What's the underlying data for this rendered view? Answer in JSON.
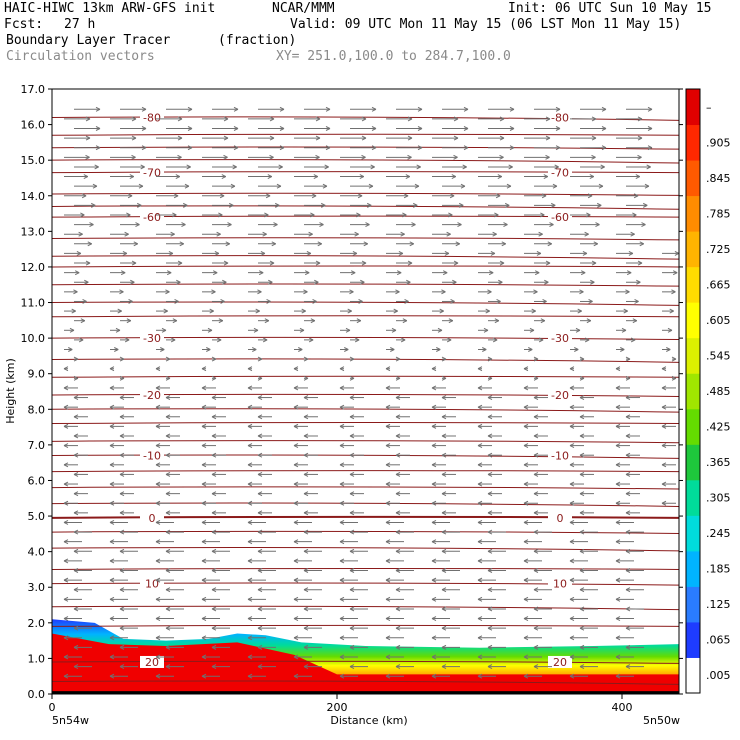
{
  "header": {
    "model": "HAIC-HIWC 13km ARW-GFS init",
    "org": "NCAR/MMM",
    "init": "Init: 06 UTC Sun 10 May 15",
    "fcst_label": "Fcst:",
    "fcst_value": "27 h",
    "valid": "Valid: 09 UTC Mon 11 May 15 (06 LST Mon 11 May 15)",
    "field": "Boundary Layer Tracer",
    "units": "(fraction)",
    "vectors": "Circulation vectors",
    "xy": "XY= 251.0,100.0 to 284.7,100.0"
  },
  "chart_data": {
    "type": "heatmap",
    "xlabel": "Distance (km)",
    "ylabel": "Height (km)",
    "xlim": [
      0,
      440
    ],
    "ylim": [
      0,
      17
    ],
    "x_ticks": [
      "0",
      "200",
      "400"
    ],
    "x_end_labels": [
      "5n54w",
      "5n50w"
    ],
    "y_ticks": [
      "0.0",
      "1.0",
      "2.0",
      "3.0",
      "4.0",
      "5.0",
      "6.0",
      "7.0",
      "8.0",
      "9.0",
      "10.0",
      "11.0",
      "12.0",
      "13.0",
      "14.0",
      "15.0",
      "16.0",
      "17.0"
    ],
    "colorbar_labels": [
      ".005",
      ".065",
      ".125",
      ".185",
      ".245",
      ".305",
      ".365",
      ".425",
      ".485",
      ".545",
      ".605",
      ".665",
      ".725",
      ".785",
      ".845",
      ".905",
      "–"
    ],
    "colorbar_colors": [
      "#ffffff",
      "#1e3cff",
      "#2a7cff",
      "#00b4ff",
      "#00dcdc",
      "#00dc9a",
      "#1ec83c",
      "#64dc00",
      "#a0e600",
      "#dcf000",
      "#ffff00",
      "#ffdc00",
      "#ffb400",
      "#ff8c00",
      "#ff5a00",
      "#ff2800",
      "#e00000"
    ],
    "temperature_contours": [
      {
        "label": "-80",
        "y": 16.2
      },
      {
        "label": "-70",
        "y": 14.65
      },
      {
        "label": "-60",
        "y": 13.4
      },
      {
        "label": "-30",
        "y": 10.0
      },
      {
        "label": "-20",
        "y": 8.4
      },
      {
        "label": "-10",
        "y": 6.7
      },
      {
        "label": "0",
        "y": 4.95
      },
      {
        "label": "10",
        "y": 3.1
      },
      {
        "label": "20",
        "y": 0.9
      }
    ],
    "tracer_top_km": [
      {
        "x": 0,
        "y": 2.1
      },
      {
        "x": 30,
        "y": 2.0
      },
      {
        "x": 50,
        "y": 1.55
      },
      {
        "x": 80,
        "y": 1.5
      },
      {
        "x": 110,
        "y": 1.55
      },
      {
        "x": 130,
        "y": 1.7
      },
      {
        "x": 150,
        "y": 1.65
      },
      {
        "x": 175,
        "y": 1.45
      },
      {
        "x": 220,
        "y": 1.35
      },
      {
        "x": 300,
        "y": 1.3
      },
      {
        "x": 380,
        "y": 1.35
      },
      {
        "x": 440,
        "y": 1.4
      }
    ],
    "red_top_km": [
      {
        "x": 0,
        "y": 1.7
      },
      {
        "x": 40,
        "y": 1.4
      },
      {
        "x": 80,
        "y": 1.35
      },
      {
        "x": 130,
        "y": 1.45
      },
      {
        "x": 170,
        "y": 1.1
      },
      {
        "x": 200,
        "y": 0.55
      },
      {
        "x": 300,
        "y": 0.55
      },
      {
        "x": 440,
        "y": 0.55
      }
    ]
  }
}
